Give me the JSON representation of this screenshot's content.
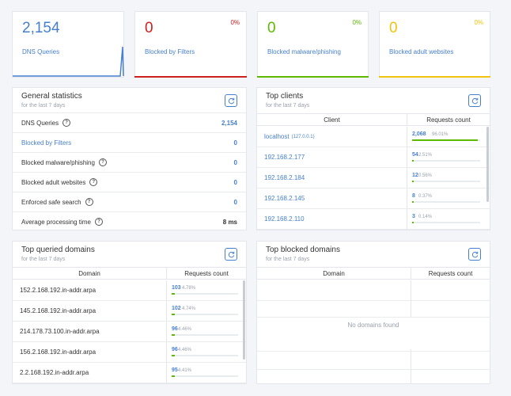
{
  "colors": {
    "accent": "#467fcf",
    "blocked": "#cd201f",
    "malware": "#5eba00",
    "adult": "#f1c40f",
    "bar": "#5eba00"
  },
  "stats": [
    {
      "value": "2,154",
      "label": "DNS Queries",
      "pct": ""
    },
    {
      "value": "0",
      "label": "Blocked by Filters",
      "pct": "0%"
    },
    {
      "value": "0",
      "label": "Blocked malware/phishing",
      "pct": "0%"
    },
    {
      "value": "0",
      "label": "Blocked adult websites",
      "pct": "0%"
    }
  ],
  "general": {
    "title": "General statistics",
    "subtitle": "for the last 7 days",
    "rows": [
      {
        "label": "DNS Queries",
        "value": "2,154"
      },
      {
        "label": "Blocked by Filters",
        "value": "0"
      },
      {
        "label": "Blocked malware/phishing",
        "value": "0"
      },
      {
        "label": "Blocked adult websites",
        "value": "0"
      },
      {
        "label": "Enforced safe search",
        "value": "0"
      },
      {
        "label": "Average processing time",
        "value": "8 ms"
      }
    ]
  },
  "clients": {
    "title": "Top clients",
    "subtitle": "for the last 7 days",
    "col1": "Client",
    "col2": "Requests count",
    "rows": [
      {
        "name": "localhost",
        "ip": "(127.0.0.1)",
        "count": "2,068",
        "pct": "96.01%",
        "frac": 0.9601
      },
      {
        "name": "192.168.2.177",
        "ip": "",
        "count": "54",
        "pct": "2.51%",
        "frac": 0.0251
      },
      {
        "name": "192.168.2.184",
        "ip": "",
        "count": "12",
        "pct": "0.56%",
        "frac": 0.0056
      },
      {
        "name": "192.168.2.145",
        "ip": "",
        "count": "8",
        "pct": "0.37%",
        "frac": 0.0037
      },
      {
        "name": "192.168.2.110",
        "ip": "",
        "count": "3",
        "pct": "0.14%",
        "frac": 0.0014
      }
    ]
  },
  "queried": {
    "title": "Top queried domains",
    "subtitle": "for the last 7 days",
    "col1": "Domain",
    "col2": "Requests count",
    "rows": [
      {
        "domain": "152.2.168.192.in-addr.arpa",
        "count": "103",
        "pct": "4.78%",
        "frac": 0.0478
      },
      {
        "domain": "145.2.168.192.in-addr.arpa",
        "count": "102",
        "pct": "4.74%",
        "frac": 0.0474
      },
      {
        "domain": "214.178.73.100.in-addr.arpa",
        "count": "96",
        "pct": "4.46%",
        "frac": 0.0446
      },
      {
        "domain": "156.2.168.192.in-addr.arpa",
        "count": "96",
        "pct": "4.46%",
        "frac": 0.0446
      },
      {
        "domain": "2.2.168.192.in-addr.arpa",
        "count": "95",
        "pct": "4.41%",
        "frac": 0.0441
      }
    ]
  },
  "blocked": {
    "title": "Top blocked domains",
    "subtitle": "for the last 7 days",
    "col1": "Domain",
    "col2": "Requests count",
    "empty": "No domains found"
  }
}
